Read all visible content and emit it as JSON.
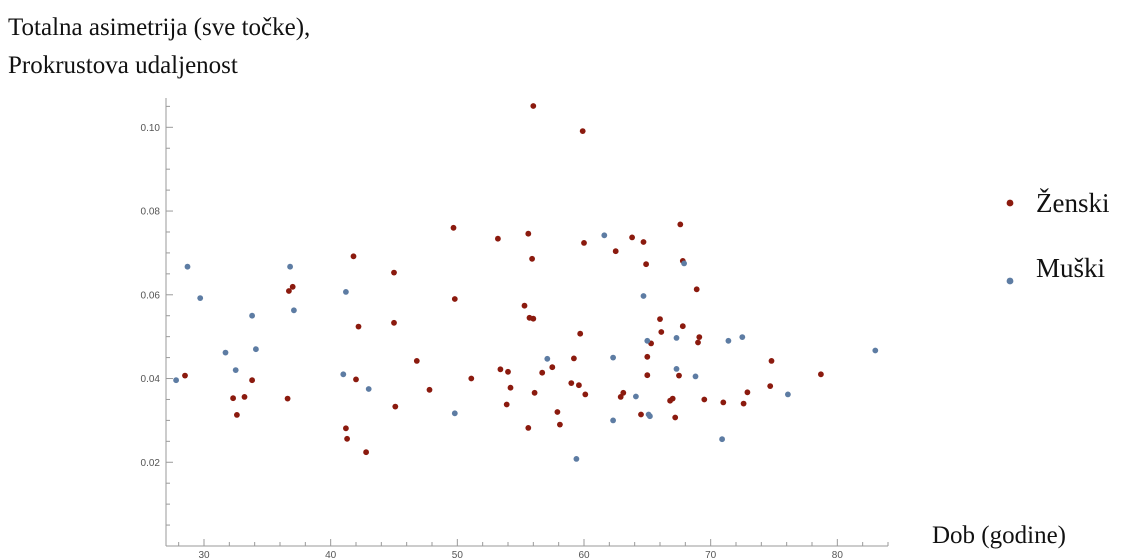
{
  "chart_data": {
    "type": "scatter",
    "title_lines": [
      "Totalna asimetrija (sve točke),",
      "Prokrustova udaljenost"
    ],
    "xlabel": "Dob (godine)",
    "xlim": [
      27,
      84
    ],
    "ylim": [
      0,
      0.107
    ],
    "x_ticks": [
      30,
      40,
      50,
      60,
      70,
      80
    ],
    "y_ticks": [
      0.02,
      0.04,
      0.06,
      0.08,
      0.1
    ],
    "x_tick_labels": [
      "30",
      "40",
      "50",
      "60",
      "70",
      "80"
    ],
    "y_tick_labels": [
      "0.02",
      "0.04",
      "0.06",
      "0.08",
      "0.10"
    ],
    "grid": false,
    "legend_position": "right",
    "series": [
      {
        "name": "Ženski",
        "color": "#8b1a0e",
        "points": [
          [
            28.5,
            0.0407
          ],
          [
            32.3,
            0.0353
          ],
          [
            32.6,
            0.0313
          ],
          [
            33.2,
            0.0356
          ],
          [
            33.8,
            0.0396
          ],
          [
            36.6,
            0.0352
          ],
          [
            36.7,
            0.0609
          ],
          [
            37.0,
            0.0619
          ],
          [
            41.2,
            0.0281
          ],
          [
            41.3,
            0.0256
          ],
          [
            41.8,
            0.0692
          ],
          [
            42.0,
            0.0398
          ],
          [
            42.2,
            0.0524
          ],
          [
            42.8,
            0.0224
          ],
          [
            45.0,
            0.0653
          ],
          [
            45.0,
            0.0533
          ],
          [
            45.1,
            0.0333
          ],
          [
            46.8,
            0.0442
          ],
          [
            47.8,
            0.0373
          ],
          [
            49.7,
            0.076
          ],
          [
            49.8,
            0.059
          ],
          [
            51.1,
            0.04
          ],
          [
            53.2,
            0.0734
          ],
          [
            53.4,
            0.0422
          ],
          [
            53.9,
            0.0338
          ],
          [
            54.0,
            0.0416
          ],
          [
            54.2,
            0.0378
          ],
          [
            55.3,
            0.0574
          ],
          [
            55.6,
            0.0282
          ],
          [
            55.6,
            0.0746
          ],
          [
            55.7,
            0.0545
          ],
          [
            55.9,
            0.0686
          ],
          [
            56.0,
            0.1051
          ],
          [
            56.0,
            0.0543
          ],
          [
            56.1,
            0.0366
          ],
          [
            56.7,
            0.0414
          ],
          [
            57.5,
            0.0427
          ],
          [
            57.9,
            0.032
          ],
          [
            58.1,
            0.029
          ],
          [
            59.0,
            0.0389
          ],
          [
            59.2,
            0.0448
          ],
          [
            59.6,
            0.0384
          ],
          [
            59.7,
            0.0507
          ],
          [
            59.9,
            0.0991
          ],
          [
            60.0,
            0.0724
          ],
          [
            60.1,
            0.0362
          ],
          [
            62.5,
            0.0704
          ],
          [
            62.9,
            0.0356
          ],
          [
            63.1,
            0.0366
          ],
          [
            63.8,
            0.0737
          ],
          [
            64.5,
            0.0314
          ],
          [
            64.7,
            0.0726
          ],
          [
            64.9,
            0.0673
          ],
          [
            65.0,
            0.0408
          ],
          [
            65.0,
            0.0452
          ],
          [
            65.3,
            0.0484
          ],
          [
            66.0,
            0.0542
          ],
          [
            66.1,
            0.0511
          ],
          [
            66.8,
            0.0347
          ],
          [
            67.0,
            0.0352
          ],
          [
            67.2,
            0.0307
          ],
          [
            67.5,
            0.0407
          ],
          [
            67.6,
            0.0768
          ],
          [
            67.8,
            0.0681
          ],
          [
            67.8,
            0.0525
          ],
          [
            68.9,
            0.0613
          ],
          [
            69.0,
            0.0486
          ],
          [
            69.1,
            0.0499
          ],
          [
            69.5,
            0.035
          ],
          [
            71.0,
            0.0343
          ],
          [
            72.6,
            0.034
          ],
          [
            72.9,
            0.0367
          ],
          [
            74.7,
            0.0382
          ],
          [
            74.8,
            0.0442
          ],
          [
            78.7,
            0.041
          ]
        ]
      },
      {
        "name": "Muški",
        "color": "#5d7ca3",
        "points": [
          [
            27.8,
            0.0396
          ],
          [
            28.7,
            0.0667
          ],
          [
            29.7,
            0.0592
          ],
          [
            31.7,
            0.0462
          ],
          [
            32.5,
            0.042
          ],
          [
            33.8,
            0.055
          ],
          [
            34.1,
            0.047
          ],
          [
            36.8,
            0.0667
          ],
          [
            37.1,
            0.0563
          ],
          [
            41.0,
            0.041
          ],
          [
            41.2,
            0.0607
          ],
          [
            43.0,
            0.0375
          ],
          [
            49.8,
            0.0317
          ],
          [
            57.1,
            0.0447
          ],
          [
            59.4,
            0.0208
          ],
          [
            61.6,
            0.0742
          ],
          [
            62.3,
            0.045
          ],
          [
            62.3,
            0.03
          ],
          [
            64.1,
            0.0357
          ],
          [
            64.7,
            0.0597
          ],
          [
            65.0,
            0.049
          ],
          [
            65.1,
            0.0314
          ],
          [
            65.2,
            0.031
          ],
          [
            67.3,
            0.0497
          ],
          [
            67.3,
            0.0423
          ],
          [
            67.9,
            0.0675
          ],
          [
            68.8,
            0.0405
          ],
          [
            70.9,
            0.0255
          ],
          [
            71.4,
            0.049
          ],
          [
            72.5,
            0.0499
          ],
          [
            76.1,
            0.0362
          ],
          [
            83.0,
            0.0467
          ]
        ]
      }
    ]
  }
}
